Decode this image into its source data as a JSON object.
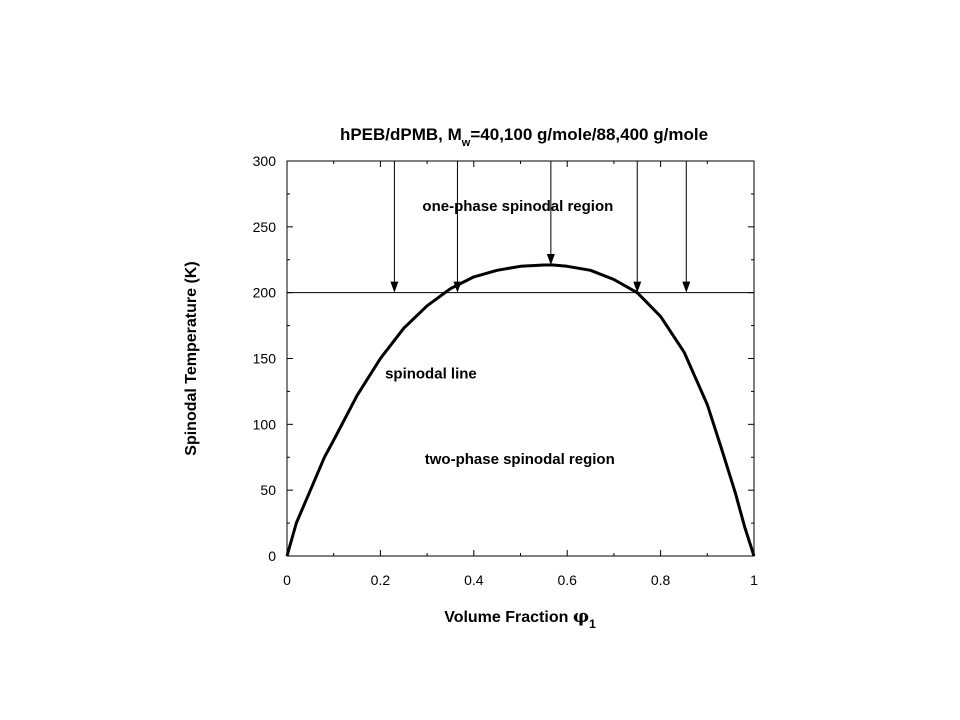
{
  "chart_data": {
    "type": "line",
    "title": {
      "prefix": "hPEB/dPMB, M",
      "subscript": "w",
      "suffix": "=40,100 g/mole/88,400 g/mole"
    },
    "xlabel": {
      "text": "Volume Fraction ",
      "symbol": "φ",
      "subscript": "1"
    },
    "ylabel": "Spinodal Temperature (K)",
    "xlim": [
      0,
      1
    ],
    "ylim": [
      0,
      300
    ],
    "x_ticks": [
      "0",
      "0.2",
      "0.4",
      "0.6",
      "0.8",
      "1"
    ],
    "y_ticks": [
      "0",
      "50",
      "100",
      "150",
      "200",
      "250",
      "300"
    ],
    "grid": false,
    "series": [
      {
        "x": [
          0,
          0.02,
          0.05,
          0.08,
          0.1,
          0.15,
          0.2,
          0.25,
          0.3,
          0.35,
          0.4,
          0.45,
          0.5,
          0.55,
          0.57,
          0.6,
          0.65,
          0.7,
          0.75,
          0.8,
          0.85,
          0.9,
          0.93,
          0.96,
          0.98,
          1.0
        ],
        "y": [
          0,
          25,
          50,
          75,
          88,
          122,
          150,
          173,
          190,
          203,
          212,
          217,
          220,
          221,
          221,
          220,
          217,
          210,
          200,
          182,
          155,
          115,
          82,
          48,
          22,
          0
        ]
      }
    ],
    "reference_line": {
      "y": 200
    },
    "arrows": [
      {
        "x": 0.23,
        "from_y": 300,
        "to_y": 200
      },
      {
        "x": 0.365,
        "from_y": 300,
        "to_y": 200
      },
      {
        "x": 0.565,
        "from_y": 300,
        "to_y": 221
      },
      {
        "x": 0.75,
        "from_y": 300,
        "to_y": 200
      },
      {
        "x": 0.855,
        "from_y": 300,
        "to_y": 200
      }
    ],
    "annotations": [
      {
        "text": "one-phase spinodal region",
        "x": 0.29,
        "y": 262
      },
      {
        "text": "spinodal line",
        "x": 0.21,
        "y": 135
      },
      {
        "text": "two-phase spinodal region",
        "x": 0.295,
        "y": 70
      }
    ]
  }
}
